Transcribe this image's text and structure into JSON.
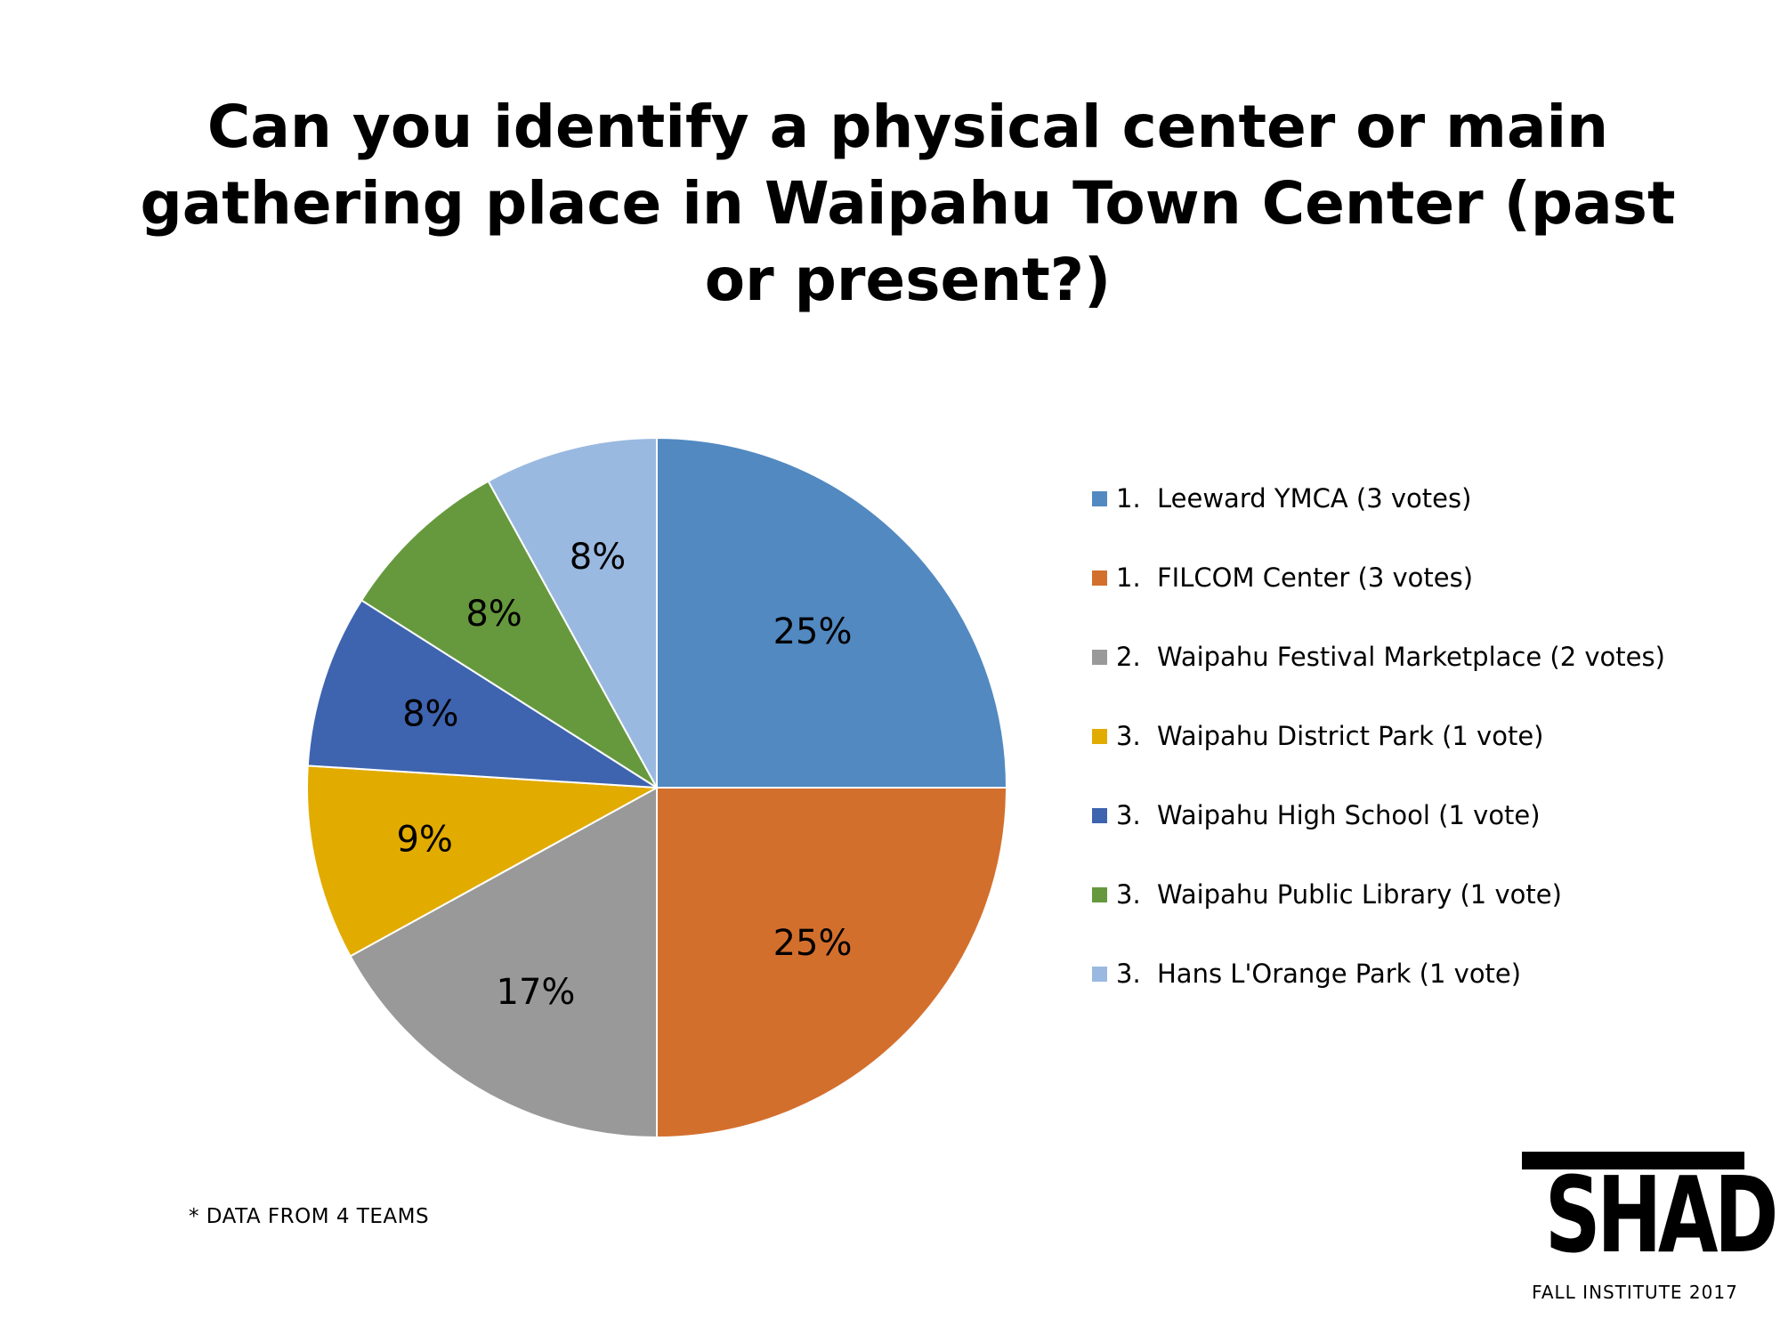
{
  "slide": {
    "footnote": "* DATA FROM 4 TEAMS"
  },
  "logo": {
    "wordmark": "SHADE",
    "subtitle": "FALL INSTITUTE 2017"
  },
  "chart_data": {
    "type": "pie",
    "title": "Can you identify a physical center or main gathering place in Waipahu Town Center (past or present?)",
    "start_angle_deg": 0,
    "direction": "clockwise",
    "legend_position": "right",
    "slices": [
      {
        "rank": "1.",
        "name": "Leeward YMCA (3 votes)",
        "value": 25,
        "label": "25%",
        "color": "#5289C1"
      },
      {
        "rank": "1.",
        "name": "FILCOM Center (3 votes)",
        "value": 25,
        "label": "25%",
        "color": "#D36F2D"
      },
      {
        "rank": "2.",
        "name": "Waipahu Festival Marketplace (2 votes)",
        "value": 17,
        "label": "17%",
        "color": "#999999"
      },
      {
        "rank": "3.",
        "name": "Waipahu District Park (1 vote)",
        "value": 9,
        "label": "9%",
        "color": "#E2AB00"
      },
      {
        "rank": "3.",
        "name": "Waipahu High School (1 vote)",
        "value": 8,
        "label": "8%",
        "color": "#3E64AF"
      },
      {
        "rank": "3.",
        "name": "Waipahu Public Library (1 vote)",
        "value": 8,
        "label": "8%",
        "color": "#66993D"
      },
      {
        "rank": "3.",
        "name": "Hans L'Orange Park (1 vote)",
        "value": 8,
        "label": "8%",
        "color": "#9AB9E0"
      }
    ]
  }
}
